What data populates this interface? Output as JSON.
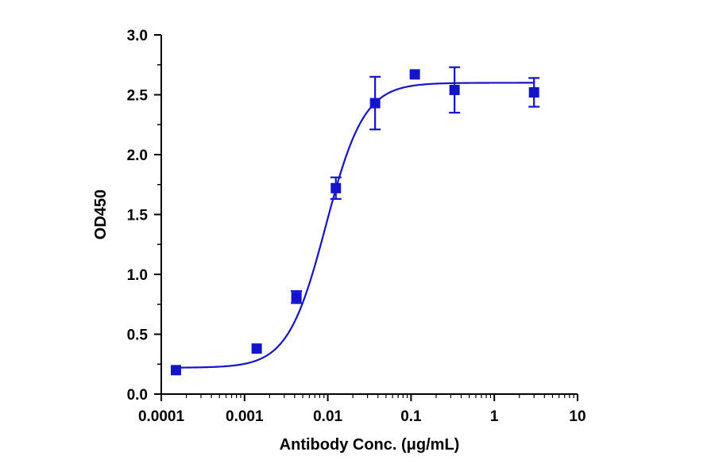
{
  "chart_data": {
    "type": "scatter",
    "title": "",
    "xlabel": "Antibody Conc. (μg/mL)",
    "ylabel": "OD450",
    "x_scale": "log",
    "xlim": [
      0.0001,
      10
    ],
    "ylim": [
      0,
      3.0
    ],
    "grid": false,
    "legend": "none",
    "x_tick_labels": [
      "0.0001",
      "0.001",
      "0.01",
      "0.1",
      "1",
      "10"
    ],
    "y_tick_labels": [
      "0.0",
      "0.5",
      "1.0",
      "1.5",
      "2.0",
      "2.5",
      "3.0"
    ],
    "series": [
      {
        "color": "#1414c8",
        "marker": "square",
        "points": [
          {
            "x": 0.00015,
            "y": 0.2,
            "err": 0.0
          },
          {
            "x": 0.0014,
            "y": 0.38,
            "err": 0.0
          },
          {
            "x": 0.0042,
            "y": 0.81,
            "err": 0.05
          },
          {
            "x": 0.0125,
            "y": 1.72,
            "err": 0.09
          },
          {
            "x": 0.037,
            "y": 2.43,
            "err": 0.22
          },
          {
            "x": 0.111,
            "y": 2.67,
            "err": 0.0
          },
          {
            "x": 0.333,
            "y": 2.54,
            "err": 0.19
          },
          {
            "x": 3.0,
            "y": 2.52,
            "err": 0.12
          }
        ],
        "fit": {
          "model": "4PL",
          "bottom": 0.22,
          "top": 2.6,
          "ec50": 0.0095,
          "hill": 1.9
        }
      }
    ]
  }
}
